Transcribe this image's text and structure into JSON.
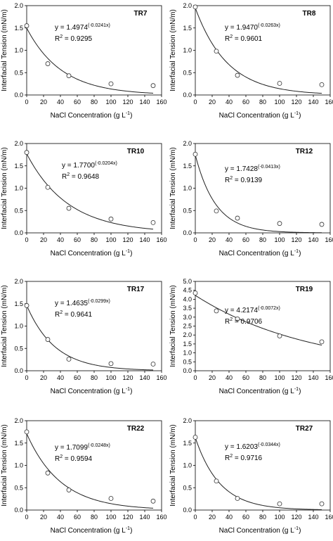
{
  "chart_data": [
    {
      "type": "scatter",
      "label": "TR7",
      "x": [
        0,
        25,
        50,
        100,
        150
      ],
      "y": [
        1.55,
        0.7,
        0.43,
        0.25,
        0.21
      ],
      "fit": {
        "a": 1.4974,
        "b": -0.0241
      },
      "equation_prefix": "y = 1.4974",
      "equation_exp": "(-0.0241x)",
      "r2_value": "= 0.9295",
      "xlim": [
        0,
        160
      ],
      "ylim": [
        0,
        2.0
      ],
      "xticks": [
        0,
        20,
        40,
        60,
        80,
        100,
        120,
        140,
        160
      ],
      "yticks": [
        "0.0",
        "0.5",
        "1.0",
        "1.5",
        "2.0"
      ],
      "xlabel": "NaCl Concentration (g L",
      "xlabel_sup": "-1",
      "xlabel_end": ")",
      "ylabel": "Interfacial Tension (mN/m)",
      "grid": false
    },
    {
      "type": "scatter",
      "label": "TR8",
      "x": [
        0,
        25,
        50,
        100,
        150
      ],
      "y": [
        1.97,
        0.98,
        0.44,
        0.26,
        0.23
      ],
      "fit": {
        "a": 1.947,
        "b": -0.0263
      },
      "equation_prefix": "y = 1.9470",
      "equation_exp": "(-0.0263x)",
      "r2_value": "= 0.9601",
      "xlim": [
        0,
        160
      ],
      "ylim": [
        0,
        2.0
      ],
      "xticks": [
        0,
        20,
        40,
        60,
        80,
        100,
        120,
        140,
        160
      ],
      "yticks": [
        "0.0",
        "0.5",
        "1.0",
        "1.5",
        "2.0"
      ],
      "xlabel": "NaCl Concentration (g L",
      "xlabel_sup": "-1",
      "xlabel_end": ")",
      "ylabel": "Interfacial Tension (mN/m)",
      "grid": false
    },
    {
      "type": "scatter",
      "label": "TR10",
      "x": [
        0,
        25,
        50,
        100,
        150
      ],
      "y": [
        1.8,
        1.02,
        0.55,
        0.31,
        0.23
      ],
      "fit": {
        "a": 1.77,
        "b": -0.0204
      },
      "equation_prefix": "y = 1.7700",
      "equation_exp": "(-0.0204x)",
      "r2_value": "= 0.9648",
      "xlim": [
        0,
        160
      ],
      "ylim": [
        0,
        2.0
      ],
      "xticks": [
        0,
        20,
        40,
        60,
        80,
        100,
        120,
        140,
        160
      ],
      "yticks": [
        "0.0",
        "0.5",
        "1.0",
        "1.5",
        "2.0"
      ],
      "xlabel": "NaCl Concentration (g L",
      "xlabel_sup": "-1",
      "xlabel_end": ")",
      "ylabel": "Interfacial Tension (mN/m)",
      "grid": false
    },
    {
      "type": "scatter",
      "label": "TR12",
      "x": [
        0,
        25,
        50,
        100,
        150
      ],
      "y": [
        1.76,
        0.49,
        0.33,
        0.21,
        0.19
      ],
      "fit": {
        "a": 1.7428,
        "b": -0.0413
      },
      "equation_prefix": "y = 1.7428",
      "equation_exp": "(-0.0413x)",
      "r2_value": "= 0.9139",
      "xlim": [
        0,
        160
      ],
      "ylim": [
        0,
        2.0
      ],
      "xticks": [
        0,
        20,
        40,
        60,
        80,
        100,
        120,
        140,
        160
      ],
      "yticks": [
        "0.0",
        "0.5",
        "1.0",
        "1.5",
        "2.0"
      ],
      "xlabel": "NaCl Concentration (g L",
      "xlabel_sup": "-1",
      "xlabel_end": ")",
      "ylabel": "Interfacial Tension (mN/m)",
      "grid": false
    },
    {
      "type": "scatter",
      "label": "TR17",
      "x": [
        0,
        25,
        50,
        100,
        150
      ],
      "y": [
        1.46,
        0.7,
        0.26,
        0.16,
        0.15
      ],
      "fit": {
        "a": 1.4635,
        "b": -0.0299
      },
      "equation_prefix": "y = 1.4635",
      "equation_exp": "(-0.0299x)",
      "r2_value": "= 0.9641",
      "xlim": [
        0,
        160
      ],
      "ylim": [
        0,
        2.0
      ],
      "xticks": [
        0,
        20,
        40,
        60,
        80,
        100,
        120,
        140,
        160
      ],
      "yticks": [
        "0.0",
        "0.5",
        "1.0",
        "1.5",
        "2.0"
      ],
      "xlabel": "NaCl Concentration (g L",
      "xlabel_sup": "-1",
      "xlabel_end": ")",
      "ylabel": "Interfacial Tension (mN/m)",
      "grid": false
    },
    {
      "type": "scatter",
      "label": "TR19",
      "x": [
        0,
        25,
        50,
        100,
        150
      ],
      "y": [
        4.35,
        3.35,
        2.9,
        1.95,
        1.62
      ],
      "fit": {
        "a": 4.2174,
        "b": -0.0072
      },
      "equation_prefix": "y = 4.2174",
      "equation_exp": "(-0.0072x)",
      "r2_value": "= 0.9706",
      "xlim": [
        0,
        160
      ],
      "ylim": [
        0,
        5.0
      ],
      "xticks": [
        0,
        20,
        40,
        60,
        80,
        100,
        120,
        140,
        160
      ],
      "yticks": [
        "0.0",
        "0.5",
        "1.0",
        "1.5",
        "2.0",
        "2.5",
        "3.0",
        "3.5",
        "4.0",
        "4.5",
        "5.0"
      ],
      "xlabel": "NaCl Concentration (g L",
      "xlabel_sup": "-1",
      "xlabel_end": ")",
      "ylabel": "Interfacial Tension (mN/m)",
      "grid": false
    },
    {
      "type": "scatter",
      "label": "TR22",
      "x": [
        0,
        25,
        50,
        100,
        150
      ],
      "y": [
        1.75,
        0.83,
        0.45,
        0.26,
        0.2
      ],
      "fit": {
        "a": 1.7099,
        "b": -0.0248
      },
      "equation_prefix": "y = 1.7099",
      "equation_exp": "(-0.0248x)",
      "r2_value": "= 0.9594",
      "xlim": [
        0,
        160
      ],
      "ylim": [
        0,
        2.0
      ],
      "xticks": [
        0,
        20,
        40,
        60,
        80,
        100,
        120,
        140,
        160
      ],
      "yticks": [
        "0.0",
        "0.5",
        "1.0",
        "1.5",
        "2.0"
      ],
      "xlabel": "NaCl Concentration (g L",
      "xlabel_sup": "-1",
      "xlabel_end": ")",
      "ylabel": "Interfacial Tension (mN/m)",
      "grid": false
    },
    {
      "type": "scatter",
      "label": "TR27",
      "x": [
        0,
        25,
        50,
        100,
        150
      ],
      "y": [
        1.63,
        0.65,
        0.26,
        0.14,
        0.14
      ],
      "fit": {
        "a": 1.6203,
        "b": -0.0344
      },
      "equation_prefix": "y = 1.6203",
      "equation_exp": "(-0.0344x)",
      "r2_value": "= 0.9716",
      "xlim": [
        0,
        160
      ],
      "ylim": [
        0,
        2.0
      ],
      "xticks": [
        0,
        20,
        40,
        60,
        80,
        100,
        120,
        140,
        160
      ],
      "yticks": [
        "0.0",
        "0.5",
        "1.0",
        "1.5",
        "2.0"
      ],
      "xlabel": "NaCl Concentration (g L",
      "xlabel_sup": "-1",
      "xlabel_end": ")",
      "ylabel": "Interfacial Tension (mN/m)",
      "grid": false
    }
  ]
}
